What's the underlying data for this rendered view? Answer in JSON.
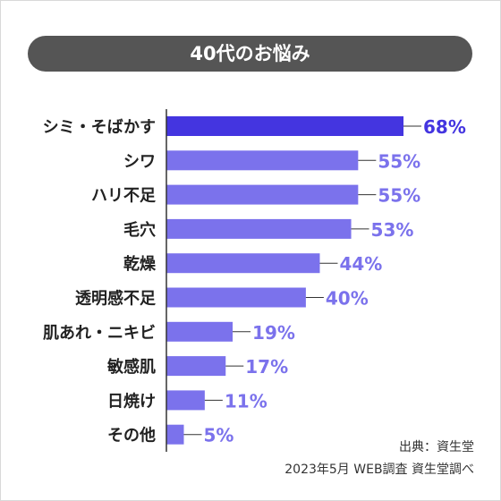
{
  "title": "40代のお悩み",
  "colors": {
    "title_bg": "#555555",
    "top_bar": "#4435e0",
    "bar": "#7b72ec",
    "top_label": "#4435e0",
    "label": "#7b72ec",
    "category_text": "#222222",
    "axis": "#333333"
  },
  "chart_data": {
    "type": "bar",
    "orientation": "horizontal",
    "categories": [
      "シミ・そばかす",
      "シワ",
      "ハリ不足",
      "毛穴",
      "乾燥",
      "透明感不足",
      "肌あれ・ニキビ",
      "敏感肌",
      "日焼け",
      "その他"
    ],
    "values": [
      68,
      55,
      55,
      53,
      44,
      40,
      19,
      17,
      11,
      5
    ],
    "value_labels": [
      "68%",
      "55%",
      "55%",
      "53%",
      "44%",
      "40%",
      "19%",
      "17%",
      "11%",
      "5%"
    ],
    "unit": "%",
    "xlim": [
      0,
      100
    ],
    "highlight_index": 0,
    "legend": false,
    "grid": false
  },
  "source": "出典：資生堂",
  "survey": "2023年5月 WEB調査 資生堂調べ"
}
